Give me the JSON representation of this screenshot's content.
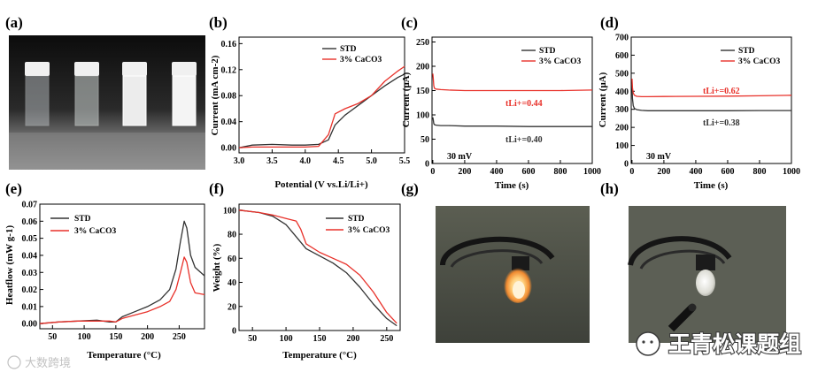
{
  "figure": {
    "panel_labels": [
      "(a)",
      "(b)",
      "(c)",
      "(d)",
      "(e)",
      "(f)",
      "(g)",
      "(h)"
    ],
    "colors": {
      "std": "#333333",
      "caco3": "#e8312a",
      "axis": "#000000"
    }
  },
  "watermarks": {
    "left": "大数跨境",
    "right": "王青松课题组"
  },
  "chart_data": [
    {
      "id": "b",
      "type": "line",
      "title": "",
      "xlabel": "Potential (V vs.Li/Li+)",
      "ylabel": "Current (mA cm-2)",
      "xlim": [
        3.0,
        5.5
      ],
      "ylim": [
        -0.008,
        0.17
      ],
      "xticks": [
        3.0,
        3.5,
        4.0,
        4.5,
        5.0,
        5.5
      ],
      "yticks": [
        0.0,
        0.04,
        0.08,
        0.12,
        0.16
      ],
      "xtick_labels": [
        "3.0",
        "3.5",
        "4.0",
        "4.5",
        "5.0",
        "5.5"
      ],
      "ytick_labels": [
        "0.00",
        "0.04",
        "0.08",
        "0.12",
        "0.16"
      ],
      "legend": [
        "STD",
        "3% CaCO3"
      ],
      "legend_loc": "top-right",
      "series": [
        {
          "name": "STD",
          "color": "#333333",
          "x": [
            3.0,
            3.2,
            3.5,
            3.8,
            4.0,
            4.2,
            4.35,
            4.45,
            4.6,
            4.8,
            5.0,
            5.2,
            5.4,
            5.5
          ],
          "y": [
            0.0,
            0.004,
            0.005,
            0.004,
            0.004,
            0.005,
            0.012,
            0.035,
            0.05,
            0.065,
            0.08,
            0.095,
            0.108,
            0.113
          ]
        },
        {
          "name": "3% CaCO3",
          "color": "#e8312a",
          "x": [
            3.0,
            3.2,
            3.5,
            3.8,
            4.0,
            4.2,
            4.35,
            4.45,
            4.6,
            4.8,
            5.0,
            5.2,
            5.4,
            5.5
          ],
          "y": [
            0.0,
            0.001,
            0.001,
            0.001,
            0.001,
            0.002,
            0.02,
            0.052,
            0.06,
            0.068,
            0.08,
            0.102,
            0.118,
            0.125
          ]
        }
      ]
    },
    {
      "id": "c",
      "type": "line",
      "xlabel": "Time (s)",
      "ylabel": "Current (μA)",
      "xlim": [
        -5,
        1000
      ],
      "ylim": [
        0,
        260
      ],
      "xticks": [
        0,
        200,
        400,
        600,
        800,
        1000
      ],
      "yticks": [
        0,
        50,
        100,
        150,
        200,
        250
      ],
      "xtick_labels": [
        "0",
        "200",
        "400",
        "600",
        "800",
        "1000"
      ],
      "ytick_labels": [
        "0",
        "50",
        "100",
        "150",
        "200",
        "250"
      ],
      "legend": [
        "STD",
        "3% CaCO3"
      ],
      "legend_loc": "top-right",
      "annotations": {
        "caco3": "tLi+=0.44",
        "std": "tLi+=0.40",
        "voltage": "30 mV"
      },
      "series": [
        {
          "name": "STD",
          "color": "#333333",
          "x": [
            0,
            3,
            6,
            10,
            20,
            50,
            100,
            200,
            400,
            600,
            800,
            1000
          ],
          "y": [
            95,
            90,
            82,
            80,
            79,
            78,
            78,
            77,
            77,
            76,
            76,
            76
          ]
        },
        {
          "name": "3% CaCO3",
          "color": "#e8312a",
          "x": [
            0,
            3,
            6,
            10,
            20,
            50,
            100,
            200,
            400,
            600,
            800,
            1000
          ],
          "y": [
            185,
            175,
            160,
            155,
            153,
            152,
            151,
            150,
            150,
            150,
            150,
            151
          ]
        }
      ]
    },
    {
      "id": "d",
      "type": "line",
      "xlabel": "Time (s)",
      "ylabel": "Current (μA)",
      "xlim": [
        -5,
        1000
      ],
      "ylim": [
        0,
        700
      ],
      "xticks": [
        0,
        200,
        400,
        600,
        800,
        1000
      ],
      "yticks": [
        0,
        100,
        200,
        300,
        400,
        500,
        600,
        700
      ],
      "xtick_labels": [
        "0",
        "200",
        "400",
        "600",
        "800",
        "1000"
      ],
      "ytick_labels": [
        "0",
        "100",
        "200",
        "300",
        "400",
        "500",
        "600",
        "700"
      ],
      "legend": [
        "STD",
        "3% CaCO3"
      ],
      "legend_loc": "top-right",
      "annotations": {
        "caco3": "tLi+=0.62",
        "std": "tLi+=0.38",
        "voltage": "30 mV"
      },
      "series": [
        {
          "name": "STD",
          "color": "#333333",
          "x": [
            0,
            3,
            8,
            15,
            30,
            60,
            100,
            200,
            400,
            600,
            800,
            1000
          ],
          "y": [
            440,
            360,
            320,
            305,
            298,
            294,
            292,
            292,
            292,
            292,
            293,
            293
          ]
        },
        {
          "name": "3% CaCO3",
          "color": "#e8312a",
          "x": [
            0,
            3,
            8,
            15,
            30,
            60,
            100,
            200,
            400,
            600,
            800,
            1000
          ],
          "y": [
            470,
            420,
            390,
            378,
            372,
            370,
            370,
            371,
            372,
            373,
            375,
            378
          ]
        }
      ]
    },
    {
      "id": "e",
      "type": "line",
      "xlabel": "Temperature (°C)",
      "ylabel": "Heatflow (mW g-1)",
      "xlim": [
        30,
        290
      ],
      "ylim": [
        -0.003,
        0.07
      ],
      "xticks": [
        50,
        100,
        150,
        200,
        250
      ],
      "yticks": [
        0.0,
        0.01,
        0.02,
        0.03,
        0.04,
        0.05,
        0.06,
        0.07
      ],
      "xtick_labels": [
        "50",
        "100",
        "150",
        "200",
        "250"
      ],
      "ytick_labels": [
        "0.00",
        "0.01",
        "0.02",
        "0.03",
        "0.04",
        "0.05",
        "0.06",
        "0.07"
      ],
      "legend": [
        "STD",
        "3% CaCO3"
      ],
      "legend_loc": "top-left",
      "series": [
        {
          "name": "STD",
          "color": "#333333",
          "x": [
            30,
            60,
            90,
            120,
            140,
            150,
            160,
            180,
            200,
            220,
            235,
            245,
            252,
            258,
            262,
            268,
            275,
            290
          ],
          "y": [
            0.0,
            0.001,
            0.0015,
            0.002,
            0.001,
            0.001,
            0.004,
            0.007,
            0.01,
            0.014,
            0.02,
            0.032,
            0.048,
            0.06,
            0.056,
            0.04,
            0.033,
            0.028
          ]
        },
        {
          "name": "3% CaCO3",
          "color": "#e8312a",
          "x": [
            30,
            60,
            90,
            120,
            140,
            150,
            160,
            180,
            200,
            220,
            235,
            245,
            252,
            258,
            262,
            268,
            275,
            290
          ],
          "y": [
            0.0,
            0.001,
            0.0015,
            0.0015,
            0.0015,
            0.001,
            0.003,
            0.005,
            0.007,
            0.01,
            0.013,
            0.02,
            0.03,
            0.039,
            0.036,
            0.024,
            0.018,
            0.017
          ]
        }
      ]
    },
    {
      "id": "f",
      "type": "line",
      "xlabel": "Temperature (°C)",
      "ylabel": "Weight (%)",
      "xlim": [
        30,
        270
      ],
      "ylim": [
        0,
        105
      ],
      "xticks": [
        50,
        100,
        150,
        200,
        250
      ],
      "yticks": [
        0,
        20,
        40,
        60,
        80,
        100
      ],
      "xtick_labels": [
        "50",
        "100",
        "150",
        "200",
        "250"
      ],
      "ytick_labels": [
        "0",
        "20",
        "40",
        "60",
        "80",
        "100"
      ],
      "legend": [
        "STD",
        "3% CaCO3"
      ],
      "legend_loc": "top-right",
      "series": [
        {
          "name": "STD",
          "color": "#333333",
          "x": [
            30,
            60,
            80,
            100,
            115,
            130,
            150,
            170,
            190,
            210,
            230,
            250,
            265
          ],
          "y": [
            100,
            98,
            95,
            88,
            78,
            68,
            62,
            56,
            48,
            36,
            22,
            10,
            4
          ]
        },
        {
          "name": "3% CaCO3",
          "color": "#e8312a",
          "x": [
            30,
            60,
            80,
            100,
            115,
            122,
            130,
            150,
            170,
            190,
            210,
            230,
            250,
            265
          ],
          "y": [
            100,
            98,
            96,
            93,
            91,
            84,
            72,
            65,
            60,
            55,
            46,
            32,
            15,
            6
          ]
        }
      ]
    }
  ]
}
